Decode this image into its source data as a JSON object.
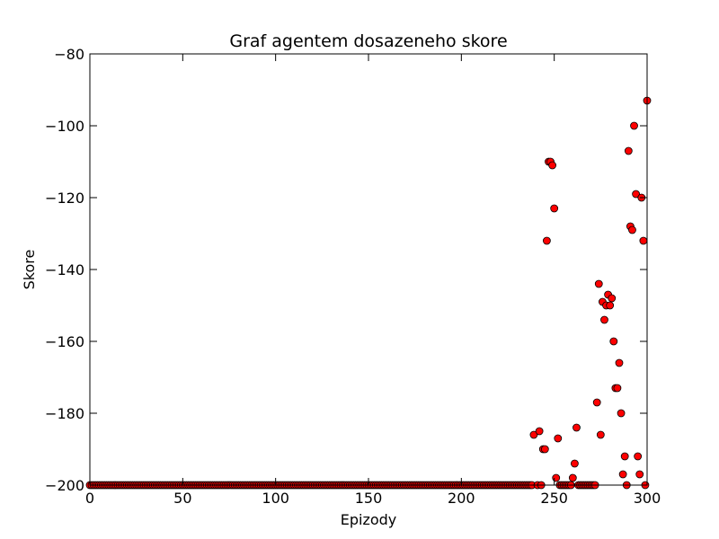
{
  "chart_data": {
    "type": "scatter",
    "title": "Graf agentem dosazeneho skore",
    "xlabel": "Epizody",
    "ylabel": "Skore",
    "xlim": [
      0,
      300
    ],
    "ylim": [
      -200,
      -80
    ],
    "x_ticks": [
      0,
      50,
      100,
      150,
      200,
      250,
      300
    ],
    "y_ticks": [
      -200,
      -180,
      -160,
      -140,
      -120,
      -100,
      -80
    ],
    "x_tick_labels": [
      "0",
      "50",
      "100",
      "150",
      "200",
      "250",
      "300"
    ],
    "y_tick_labels": [
      "−200",
      "−180",
      "−160",
      "−140",
      "−120",
      "−100",
      "−80"
    ],
    "grid": false,
    "legend": "none",
    "marker_color": "#ff0000",
    "marker_edge_color": "#000000",
    "baseline": {
      "y": -200,
      "x_from": 0,
      "x_to": 238,
      "note": "every episode from 0 to 238 scored -200"
    },
    "points": [
      [
        239,
        -186
      ],
      [
        241,
        -200
      ],
      [
        242,
        -185
      ],
      [
        243,
        -200
      ],
      [
        244,
        -190
      ],
      [
        245,
        -190
      ],
      [
        246,
        -132
      ],
      [
        247,
        -110
      ],
      [
        248,
        -110
      ],
      [
        249,
        -111
      ],
      [
        250,
        -123
      ],
      [
        251,
        -198
      ],
      [
        252,
        -187
      ],
      [
        253,
        -200
      ],
      [
        254,
        -200
      ],
      [
        255,
        -200
      ],
      [
        256,
        -200
      ],
      [
        257,
        -200
      ],
      [
        258,
        -200
      ],
      [
        259,
        -200
      ],
      [
        260,
        -198
      ],
      [
        261,
        -194
      ],
      [
        262,
        -184
      ],
      [
        263,
        -200
      ],
      [
        264,
        -200
      ],
      [
        265,
        -200
      ],
      [
        266,
        -200
      ],
      [
        267,
        -200
      ],
      [
        268,
        -200
      ],
      [
        269,
        -200
      ],
      [
        270,
        -200
      ],
      [
        271,
        -200
      ],
      [
        272,
        -200
      ],
      [
        273,
        -177
      ],
      [
        274,
        -144
      ],
      [
        275,
        -186
      ],
      [
        276,
        -149
      ],
      [
        277,
        -154
      ],
      [
        278,
        -150
      ],
      [
        279,
        -147
      ],
      [
        280,
        -150
      ],
      [
        281,
        -148
      ],
      [
        282,
        -160
      ],
      [
        283,
        -173
      ],
      [
        284,
        -173
      ],
      [
        285,
        -166
      ],
      [
        286,
        -180
      ],
      [
        287,
        -197
      ],
      [
        288,
        -192
      ],
      [
        289,
        -200
      ],
      [
        290,
        -107
      ],
      [
        291,
        -128
      ],
      [
        292,
        -129
      ],
      [
        293,
        -100
      ],
      [
        294,
        -119
      ],
      [
        295,
        -192
      ],
      [
        296,
        -197
      ],
      [
        297,
        -120
      ],
      [
        298,
        -132
      ],
      [
        299,
        -200
      ],
      [
        300,
        -93
      ]
    ]
  }
}
